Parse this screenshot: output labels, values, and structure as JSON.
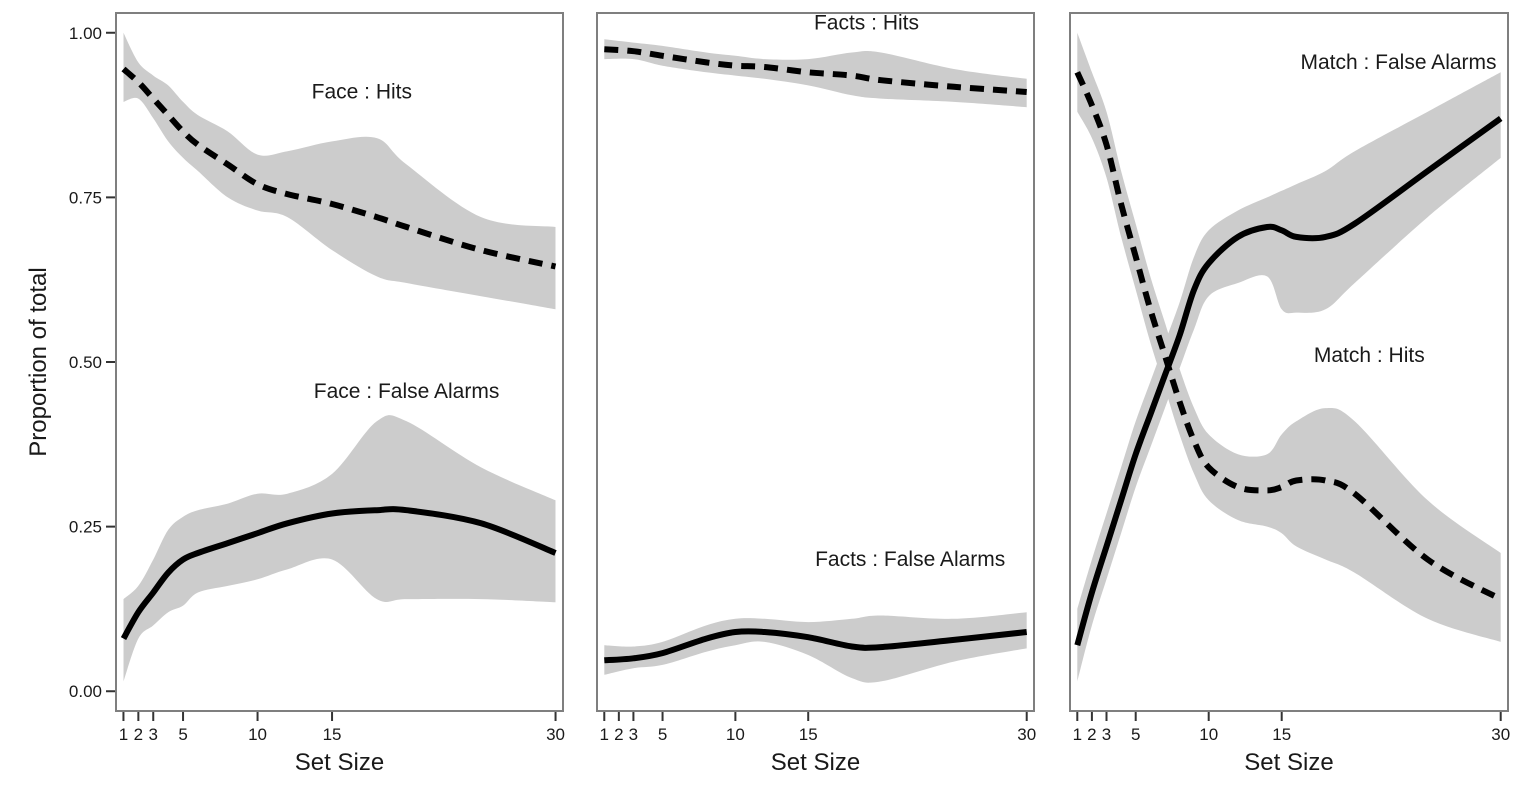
{
  "chart_data": [
    {
      "type": "line",
      "panel": "left",
      "xlabel": "Set Size",
      "ylabel": "Proportion of total",
      "xlim": [
        0.5,
        30.5
      ],
      "ylim": [
        -0.03,
        1.03
      ],
      "xticks": [
        1,
        2,
        3,
        5,
        10,
        15,
        30
      ],
      "xtick_labels": [
        "1",
        "2",
        "3",
        "5",
        "10",
        "15",
        "30"
      ],
      "yticks": [
        0.0,
        0.25,
        0.5,
        0.75,
        1.0
      ],
      "ytick_labels": [
        "0.00",
        "0.25",
        "0.50",
        "0.75",
        "1.00"
      ],
      "series": [
        {
          "name": "Face : Hits",
          "dash": "dashed",
          "x": [
            1,
            2,
            3,
            4,
            5,
            6,
            8,
            10,
            12,
            15,
            18,
            20,
            25,
            30
          ],
          "y": [
            0.945,
            0.925,
            0.9,
            0.875,
            0.85,
            0.83,
            0.8,
            0.77,
            0.755,
            0.74,
            0.72,
            0.705,
            0.67,
            0.645
          ],
          "lower": [
            0.895,
            0.9,
            0.87,
            0.835,
            0.81,
            0.79,
            0.75,
            0.73,
            0.72,
            0.67,
            0.63,
            0.62,
            0.6,
            0.58
          ],
          "upper": [
            1.0,
            0.955,
            0.935,
            0.92,
            0.895,
            0.875,
            0.85,
            0.815,
            0.82,
            0.835,
            0.84,
            0.8,
            0.72,
            0.705
          ],
          "label_pos": [
            17,
            0.9
          ]
        },
        {
          "name": "Face : False Alarms",
          "dash": "solid",
          "x": [
            1,
            2,
            3,
            4,
            5,
            6,
            8,
            10,
            12,
            15,
            18,
            20,
            25,
            30
          ],
          "y": [
            0.08,
            0.12,
            0.15,
            0.18,
            0.2,
            0.21,
            0.225,
            0.24,
            0.255,
            0.27,
            0.275,
            0.275,
            0.255,
            0.21
          ],
          "lower": [
            0.015,
            0.08,
            0.1,
            0.12,
            0.13,
            0.15,
            0.16,
            0.17,
            0.185,
            0.2,
            0.14,
            0.14,
            0.14,
            0.135
          ],
          "upper": [
            0.14,
            0.16,
            0.2,
            0.245,
            0.265,
            0.275,
            0.285,
            0.3,
            0.3,
            0.33,
            0.41,
            0.41,
            0.34,
            0.29
          ],
          "label_pos": [
            20,
            0.445
          ]
        }
      ]
    },
    {
      "type": "line",
      "panel": "middle",
      "xlabel": "Set Size",
      "ylabel": "",
      "xlim": [
        0.5,
        30.5
      ],
      "ylim": [
        -0.03,
        1.03
      ],
      "xticks": [
        1,
        2,
        3,
        5,
        10,
        15,
        30
      ],
      "xtick_labels": [
        "1",
        "2",
        "3",
        "5",
        "10",
        "15",
        "30"
      ],
      "series": [
        {
          "name": "Facts : Hits",
          "dash": "dashed",
          "x": [
            1,
            3,
            5,
            8,
            10,
            12,
            15,
            18,
            20,
            25,
            30
          ],
          "y": [
            0.975,
            0.972,
            0.965,
            0.955,
            0.95,
            0.948,
            0.94,
            0.935,
            0.928,
            0.918,
            0.91
          ],
          "lower": [
            0.96,
            0.96,
            0.95,
            0.94,
            0.935,
            0.93,
            0.92,
            0.905,
            0.9,
            0.895,
            0.887
          ],
          "upper": [
            0.99,
            0.985,
            0.98,
            0.97,
            0.965,
            0.96,
            0.96,
            0.97,
            0.97,
            0.945,
            0.93
          ],
          "label_pos": [
            19,
            1.005
          ]
        },
        {
          "name": "Facts : False Alarms",
          "dash": "solid",
          "x": [
            1,
            3,
            5,
            8,
            10,
            12,
            15,
            18,
            20,
            25,
            30
          ],
          "y": [
            0.047,
            0.05,
            0.058,
            0.08,
            0.09,
            0.09,
            0.082,
            0.068,
            0.067,
            0.078,
            0.09
          ],
          "lower": [
            0.025,
            0.035,
            0.04,
            0.06,
            0.07,
            0.075,
            0.055,
            0.02,
            0.015,
            0.045,
            0.065
          ],
          "upper": [
            0.07,
            0.068,
            0.075,
            0.1,
            0.11,
            0.11,
            0.105,
            0.11,
            0.115,
            0.11,
            0.12
          ],
          "label_pos": [
            22,
            0.19
          ]
        }
      ]
    },
    {
      "type": "line",
      "panel": "right",
      "xlabel": "Set Size",
      "ylabel": "",
      "xlim": [
        0.5,
        30.5
      ],
      "ylim": [
        -0.03,
        1.03
      ],
      "xticks": [
        1,
        2,
        3,
        5,
        10,
        15,
        30
      ],
      "xtick_labels": [
        "1",
        "2",
        "3",
        "5",
        "10",
        "15",
        "30"
      ],
      "series": [
        {
          "name": "Match : False Alarms",
          "dash": "solid",
          "x": [
            1,
            2,
            3,
            4,
            5,
            6,
            7,
            8,
            9,
            10,
            12,
            14,
            15,
            16,
            18,
            20,
            25,
            30
          ],
          "y": [
            0.07,
            0.15,
            0.22,
            0.29,
            0.36,
            0.42,
            0.48,
            0.54,
            0.61,
            0.65,
            0.69,
            0.705,
            0.7,
            0.69,
            0.69,
            0.71,
            0.79,
            0.87
          ],
          "lower": [
            0.015,
            0.1,
            0.17,
            0.24,
            0.31,
            0.37,
            0.43,
            0.49,
            0.55,
            0.6,
            0.62,
            0.63,
            0.58,
            0.575,
            0.58,
            0.62,
            0.72,
            0.81
          ],
          "upper": [
            0.125,
            0.2,
            0.27,
            0.34,
            0.41,
            0.47,
            0.53,
            0.59,
            0.66,
            0.7,
            0.73,
            0.75,
            0.76,
            0.77,
            0.79,
            0.82,
            0.88,
            0.94
          ],
          "label_pos": [
            23,
            0.945
          ]
        },
        {
          "name": "Match : Hits",
          "dash": "dashed",
          "x": [
            1,
            2,
            3,
            4,
            5,
            6,
            7,
            8,
            9,
            10,
            12,
            14,
            15,
            16,
            18,
            20,
            25,
            30
          ],
          "y": [
            0.94,
            0.89,
            0.83,
            0.74,
            0.66,
            0.58,
            0.51,
            0.44,
            0.38,
            0.34,
            0.31,
            0.305,
            0.31,
            0.32,
            0.32,
            0.3,
            0.2,
            0.14
          ],
          "lower": [
            0.88,
            0.84,
            0.78,
            0.69,
            0.61,
            0.53,
            0.46,
            0.39,
            0.33,
            0.29,
            0.26,
            0.25,
            0.24,
            0.22,
            0.2,
            0.18,
            0.11,
            0.075
          ],
          "upper": [
            1.0,
            0.94,
            0.88,
            0.79,
            0.71,
            0.63,
            0.56,
            0.49,
            0.43,
            0.39,
            0.36,
            0.36,
            0.39,
            0.41,
            0.43,
            0.41,
            0.29,
            0.21
          ],
          "label_pos": [
            21,
            0.5
          ]
        }
      ]
    }
  ]
}
